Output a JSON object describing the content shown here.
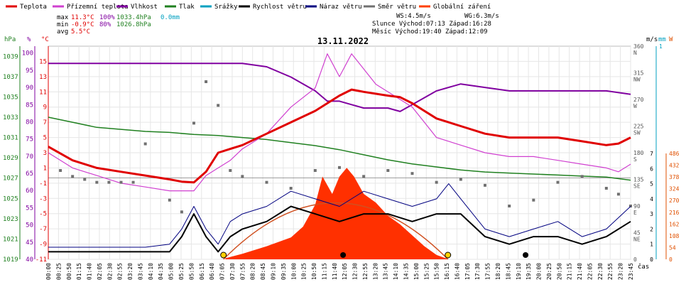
{
  "legend": [
    {
      "label": "Teplota",
      "color": "#e00000"
    },
    {
      "label": "Přízemní teplota",
      "color": "#d040d0"
    },
    {
      "label": "Vlhkost",
      "color": "#8000a0"
    },
    {
      "label": "Tlak",
      "color": "#208020"
    },
    {
      "label": "Srážky",
      "color": "#00a0c0"
    },
    {
      "label": "Rychlost větru",
      "color": "#000000"
    },
    {
      "label": "Náraz větru",
      "color": "#000080"
    },
    {
      "label": "Směr větru",
      "color": "#707070"
    },
    {
      "label": "Globální záření",
      "color": "#ff4000"
    }
  ],
  "stats": {
    "max_label": "max",
    "min_label": "min",
    "avg_label": "avg",
    "max_temp": "11.3°C",
    "max_hum": "100%",
    "max_press": "1033.4hPa",
    "max_rain": "0.0mm",
    "min_temp": "-0.9°C",
    "min_hum": "80%",
    "min_press": "1026.8hPa",
    "avg_temp": "5.5°C",
    "ws": "WS:4.5m/s",
    "wg": "WG:6.3m/s",
    "sun": "Slunce Východ:07:13  Západ:16:28",
    "moon": "Měsíc  Východ:19:40  Západ:12:09"
  },
  "date": "13.11.2022",
  "units": {
    "hpa": "hPa",
    "pct": "%",
    "degc": "°C",
    "ms": "m/s",
    "mm": "mm",
    "w": "W",
    "cas": "čas"
  },
  "colors": {
    "temp": "#e00000",
    "ground": "#d040d0",
    "hum": "#8000a0",
    "press": "#208020",
    "wind": "#000000",
    "gust": "#000080",
    "dir": "#707070",
    "rad": "#ff3000",
    "rain": "#00a0c0",
    "sunline": "#d05020"
  },
  "chart_data": {
    "type": "line",
    "title": "13.11.2022",
    "xlabel": "čas",
    "x_ticks": [
      "00:00",
      "00:25",
      "00:50",
      "01:15",
      "01:40",
      "02:05",
      "02:30",
      "02:55",
      "03:20",
      "03:45",
      "04:10",
      "04:35",
      "05:00",
      "05:25",
      "05:50",
      "06:15",
      "06:40",
      "07:05",
      "07:30",
      "07:55",
      "08:20",
      "08:45",
      "09:10",
      "09:35",
      "10:00",
      "10:25",
      "10:50",
      "11:15",
      "11:40",
      "12:05",
      "12:30",
      "12:55",
      "13:20",
      "13:45",
      "14:10",
      "14:35",
      "15:00",
      "15:25",
      "15:50",
      "16:15",
      "16:40",
      "17:05",
      "17:30",
      "17:55",
      "18:20",
      "18:45",
      "19:10",
      "19:35",
      "20:00",
      "20:25",
      "20:50",
      "21:15",
      "21:40",
      "22:05",
      "22:30",
      "22:55",
      "23:20",
      "23:45"
    ],
    "axes": {
      "pressure_hPa": {
        "ticks": [
          "1039",
          "1037",
          "1035",
          "1033",
          "1031",
          "1029",
          "1027",
          "1025",
          "1023",
          "1021",
          "1019"
        ],
        "range": [
          1019,
          1040
        ]
      },
      "humidity_pct": {
        "ticks": [
          "100",
          "95",
          "90",
          "85",
          "80",
          "75",
          "70",
          "65",
          "60",
          "55",
          "50",
          "45",
          "40"
        ],
        "range": [
          40,
          102
        ]
      },
      "temperature_C": {
        "ticks": [
          "15",
          "13",
          "11",
          "9",
          "7",
          "5",
          "3",
          "1",
          "-1",
          "-3",
          "-5",
          "-7",
          "-9",
          "-11"
        ],
        "range": [
          -11,
          17
        ]
      },
      "wind_dir_deg": {
        "ticks": [
          "360",
          "315",
          "270",
          "225",
          "180",
          "135",
          "90",
          "45",
          "0"
        ],
        "labels": [
          "N",
          "NW",
          "W",
          "SW",
          "S",
          "SE",
          "E",
          "NE",
          ""
        ],
        "range": [
          0,
          360
        ]
      },
      "wind_ms": {
        "ticks": [
          "7",
          "6",
          "5",
          "4",
          "3",
          "2",
          "1",
          "0"
        ],
        "range": [
          0,
          7
        ]
      },
      "radiation_W": {
        "ticks": [
          "486",
          "432",
          "378",
          "324",
          "270",
          "216",
          "162",
          "108",
          "54",
          "0"
        ],
        "range": [
          0,
          486
        ]
      }
    },
    "series": [
      {
        "name": "Teplota",
        "x": [
          0,
          1,
          2,
          3,
          4,
          5,
          5.5,
          6,
          6.5,
          7,
          7.5,
          8,
          9,
          10,
          11,
          11.5,
          12,
          12.5,
          13,
          14,
          14.5,
          15,
          15.5,
          16,
          17,
          18,
          19,
          20,
          21,
          22,
          23,
          23.5,
          24
        ],
        "values": [
          3.8,
          2.0,
          1.0,
          0.5,
          0.0,
          -0.5,
          -0.8,
          -0.9,
          0.5,
          3.0,
          3.5,
          4.0,
          5.5,
          7.0,
          8.5,
          9.5,
          10.5,
          11.3,
          11.0,
          10.5,
          10.3,
          9.5,
          8.5,
          7.5,
          6.5,
          5.5,
          5.0,
          5.0,
          5.0,
          4.5,
          4.0,
          4.2,
          5.0
        ]
      },
      {
        "name": "Přízemní teplota",
        "x": [
          0,
          1,
          2,
          3,
          4,
          5,
          6,
          6.5,
          7,
          7.5,
          8,
          9,
          10,
          11,
          11.5,
          12,
          12.5,
          13,
          13.5,
          14,
          15,
          15.5,
          16,
          17,
          18,
          19,
          20,
          21,
          22,
          23,
          23.5,
          24
        ],
        "values": [
          3.0,
          1.0,
          0.0,
          -1.0,
          -1.5,
          -2.0,
          -2.0,
          0.0,
          1.0,
          2.0,
          3.5,
          5.5,
          9.0,
          11.5,
          16.0,
          13.0,
          16.0,
          14.0,
          12.0,
          11.0,
          9.0,
          7.0,
          5.0,
          4.0,
          3.0,
          2.5,
          2.5,
          2.0,
          1.5,
          1.0,
          0.5,
          1.5
        ]
      },
      {
        "name": "Vlhkost",
        "x": [
          0,
          2,
          4,
          6,
          7,
          8,
          9,
          10,
          11,
          11.5,
          12,
          12.5,
          13,
          14,
          14.5,
          15,
          16,
          17,
          18,
          19,
          20,
          21,
          22,
          23,
          24
        ],
        "values": [
          97,
          97,
          97,
          97,
          97,
          97,
          96,
          93,
          89,
          86,
          86,
          85,
          84,
          84,
          83,
          85,
          89,
          91,
          90,
          89,
          89,
          89,
          89,
          89,
          88
        ]
      },
      {
        "name": "Tlak",
        "x": [
          0,
          1,
          2,
          3,
          4,
          5,
          6,
          7,
          8,
          9,
          10,
          11,
          12,
          13,
          14,
          15,
          16,
          17,
          18,
          19,
          20,
          21,
          22,
          23,
          24
        ],
        "values": [
          1033.0,
          1032.5,
          1032.0,
          1031.8,
          1031.6,
          1031.5,
          1031.3,
          1031.2,
          1031.0,
          1030.8,
          1030.5,
          1030.2,
          1029.8,
          1029.3,
          1028.8,
          1028.4,
          1028.1,
          1027.8,
          1027.6,
          1027.5,
          1027.4,
          1027.3,
          1027.2,
          1027.1,
          1026.8
        ]
      },
      {
        "name": "Globální záření",
        "x": [
          7.3,
          8,
          9,
          10,
          10.5,
          11,
          11.3,
          11.7,
          12,
          12.3,
          12.6,
          13,
          13.5,
          14,
          14.5,
          15,
          15.5,
          16,
          16.5
        ],
        "values": [
          5,
          25,
          60,
          100,
          150,
          250,
          380,
          300,
          380,
          420,
          380,
          300,
          260,
          200,
          160,
          110,
          60,
          20,
          0
        ]
      },
      {
        "name": "Rychlost větru",
        "x": [
          0,
          1,
          2,
          3,
          4,
          5,
          5.5,
          6,
          6.5,
          7,
          7.5,
          8,
          9,
          10,
          11,
          12,
          13,
          14,
          15,
          16,
          17,
          18,
          19,
          20,
          21,
          22,
          23,
          24
        ],
        "values": [
          0.5,
          0.5,
          0.5,
          0.5,
          0.5,
          0.5,
          1.5,
          3.0,
          1.5,
          0.5,
          1.5,
          2.0,
          2.5,
          3.5,
          3.0,
          2.5,
          3.0,
          3.0,
          2.5,
          3.0,
          3.0,
          1.5,
          1.0,
          1.5,
          1.5,
          1.0,
          1.5,
          2.5
        ]
      },
      {
        "name": "Náraz větru",
        "x": [
          0,
          1,
          2,
          3,
          4,
          5,
          5.5,
          6,
          6.5,
          7,
          7.5,
          8,
          9,
          10,
          11,
          12,
          13,
          14,
          15,
          16,
          16.5,
          17,
          18,
          19,
          20,
          21,
          22,
          23,
          24
        ],
        "values": [
          0.8,
          0.8,
          0.8,
          0.8,
          0.8,
          1.0,
          2.0,
          3.5,
          2.0,
          1.0,
          2.5,
          3.0,
          3.5,
          4.5,
          4.0,
          3.5,
          4.5,
          4.0,
          3.5,
          4.0,
          5.0,
          4.0,
          2.0,
          1.5,
          2.0,
          2.5,
          1.5,
          2.0,
          3.5
        ]
      },
      {
        "name": "Směr větru",
        "x": [
          0.5,
          1,
          1.5,
          2,
          2.5,
          3,
          3.5,
          4,
          5,
          5.5,
          6,
          6.5,
          7,
          7.5,
          8,
          9,
          10,
          11,
          12,
          13,
          14,
          15,
          16,
          17,
          18,
          19,
          20,
          21,
          22,
          23,
          23.5,
          24
        ],
        "values": [
          150,
          140,
          135,
          130,
          130,
          130,
          130,
          195,
          100,
          80,
          230,
          300,
          260,
          150,
          140,
          130,
          120,
          150,
          155,
          140,
          150,
          145,
          130,
          135,
          125,
          90,
          100,
          130,
          140,
          120,
          110,
          90
        ]
      }
    ]
  }
}
